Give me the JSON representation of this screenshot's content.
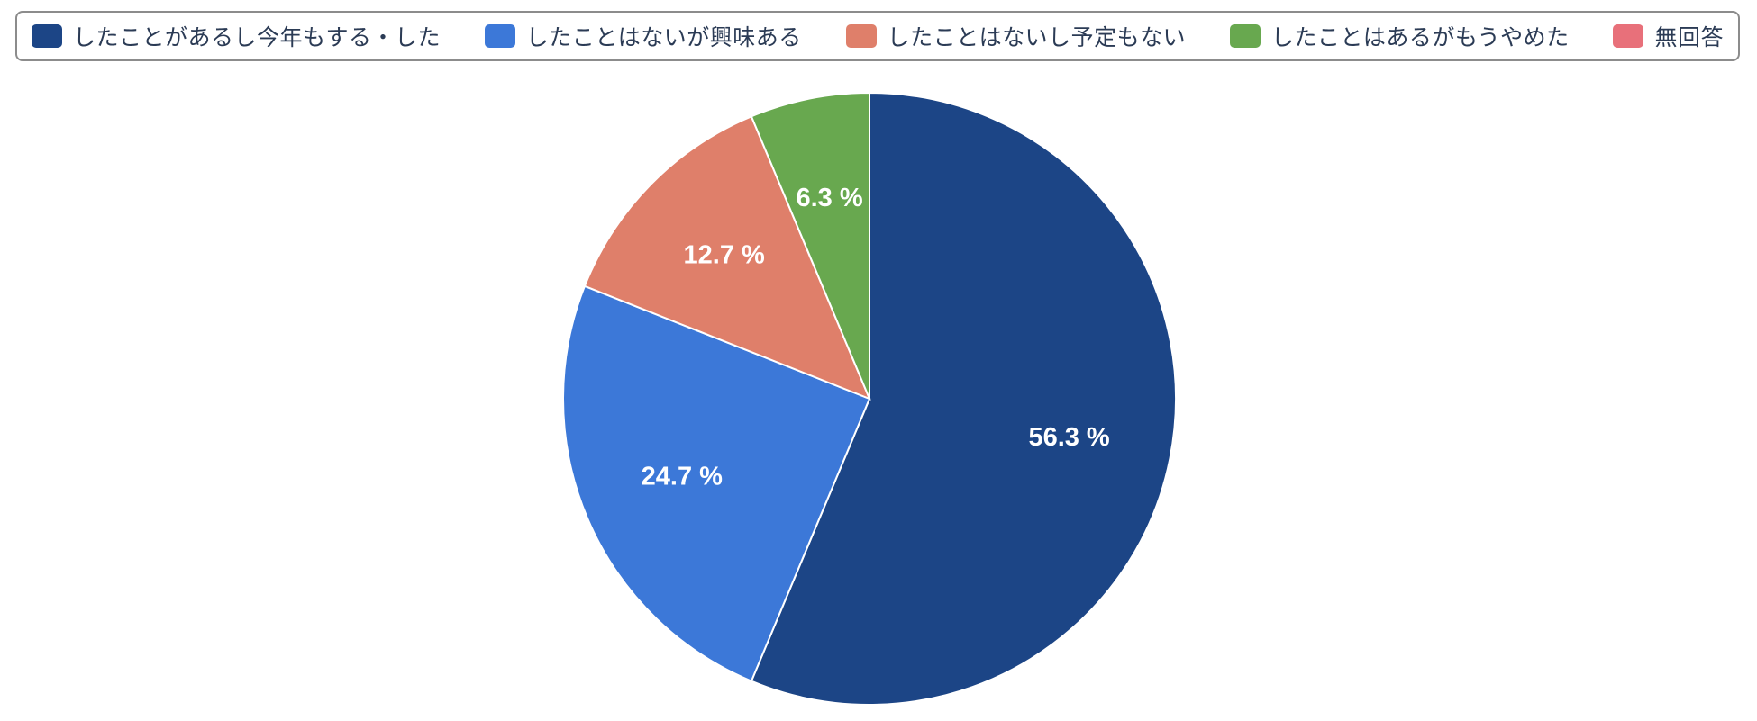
{
  "chart_data": {
    "type": "pie",
    "categories": [
      "したことがあるし今年もする・した",
      "したことはないが興味ある",
      "したことはないし予定もない",
      "したことはあるがもうやめた",
      "無回答"
    ],
    "values": [
      56.3,
      24.7,
      12.7,
      6.3,
      0
    ],
    "value_labels": [
      "56.3 %",
      "24.7 %",
      "12.7 %",
      "6.3 %",
      ""
    ],
    "colors": [
      "#1c4586",
      "#3c78d8",
      "#df7f6a",
      "#68a84f",
      "#e8707a"
    ],
    "legend_position": "top"
  }
}
